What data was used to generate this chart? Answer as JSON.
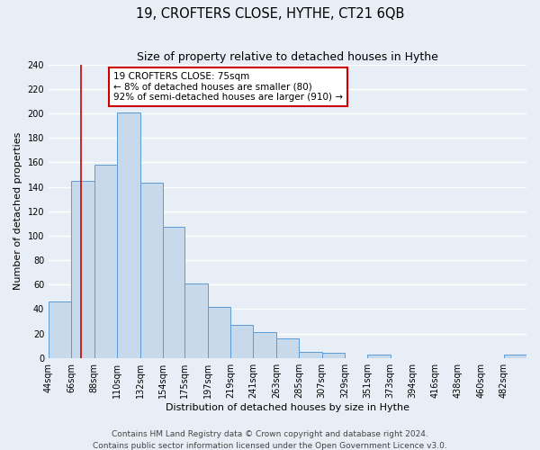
{
  "title": "19, CROFTERS CLOSE, HYTHE, CT21 6QB",
  "subtitle": "Size of property relative to detached houses in Hythe",
  "xlabel": "Distribution of detached houses by size in Hythe",
  "ylabel": "Number of detached properties",
  "bar_labels": [
    "44sqm",
    "66sqm",
    "88sqm",
    "110sqm",
    "132sqm",
    "154sqm",
    "175sqm",
    "197sqm",
    "219sqm",
    "241sqm",
    "263sqm",
    "285sqm",
    "307sqm",
    "329sqm",
    "351sqm",
    "373sqm",
    "394sqm",
    "416sqm",
    "438sqm",
    "460sqm",
    "482sqm"
  ],
  "bin_edges": [
    44,
    66,
    88,
    110,
    132,
    154,
    175,
    197,
    219,
    241,
    263,
    285,
    307,
    329,
    351,
    373,
    394,
    416,
    438,
    460,
    482,
    504
  ],
  "all_bar_heights": [
    46,
    145,
    158,
    201,
    143,
    107,
    61,
    42,
    27,
    21,
    16,
    5,
    4,
    0,
    3,
    0,
    0,
    0,
    0,
    0,
    3
  ],
  "bar_color": "#c9d9ec",
  "bar_edge_color": "#5b9bd5",
  "vline_x": 75,
  "vline_color": "#cc0000",
  "annotation_title": "19 CROFTERS CLOSE: 75sqm",
  "annotation_line1": "← 8% of detached houses are smaller (80)",
  "annotation_line2": "92% of semi-detached houses are larger (910) →",
  "annotation_box_color": "#ffffff",
  "annotation_box_edge_color": "#cc0000",
  "ylim": [
    0,
    240
  ],
  "yticks": [
    0,
    20,
    40,
    60,
    80,
    100,
    120,
    140,
    160,
    180,
    200,
    220,
    240
  ],
  "footer1": "Contains HM Land Registry data © Crown copyright and database right 2024.",
  "footer2": "Contains public sector information licensed under the Open Government Licence v3.0.",
  "bg_color": "#e8eef5",
  "grid_color": "#ffffff",
  "title_fontsize": 10.5,
  "subtitle_fontsize": 9,
  "axis_label_fontsize": 8,
  "tick_fontsize": 7,
  "footer_fontsize": 6.5
}
